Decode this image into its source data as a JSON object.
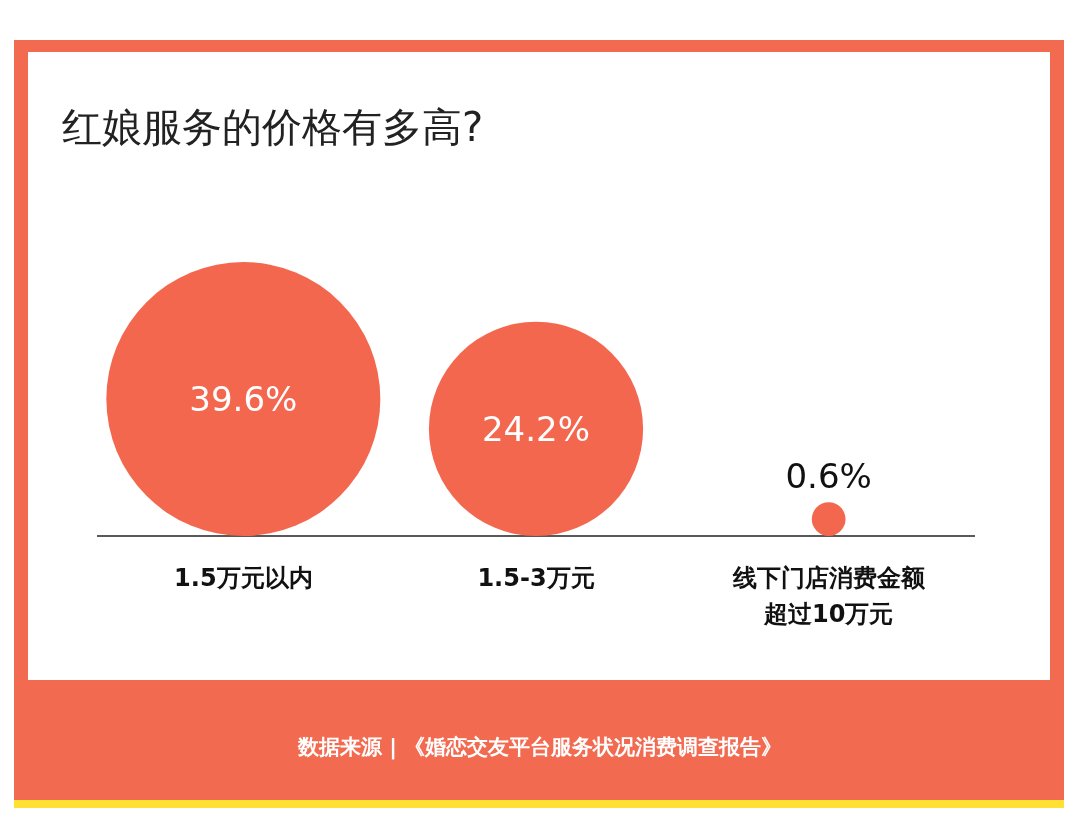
{
  "chart_data": {
    "type": "other",
    "title": "红娘服务的价格有多高?",
    "categories": [
      "1.5万元以内",
      "1.5-3万元",
      "线下门店消费金额超过10万元"
    ],
    "values": [
      39.6,
      24.2,
      0.6
    ],
    "value_labels": [
      "39.6%",
      "24.2%",
      "0.6%"
    ],
    "colors": [
      "#f4674f",
      "#f4674f",
      "#f4674f"
    ],
    "annotations": [
      "数据来源 | 《婚恋交友平台服务状况消费调查报告》"
    ]
  }
}
